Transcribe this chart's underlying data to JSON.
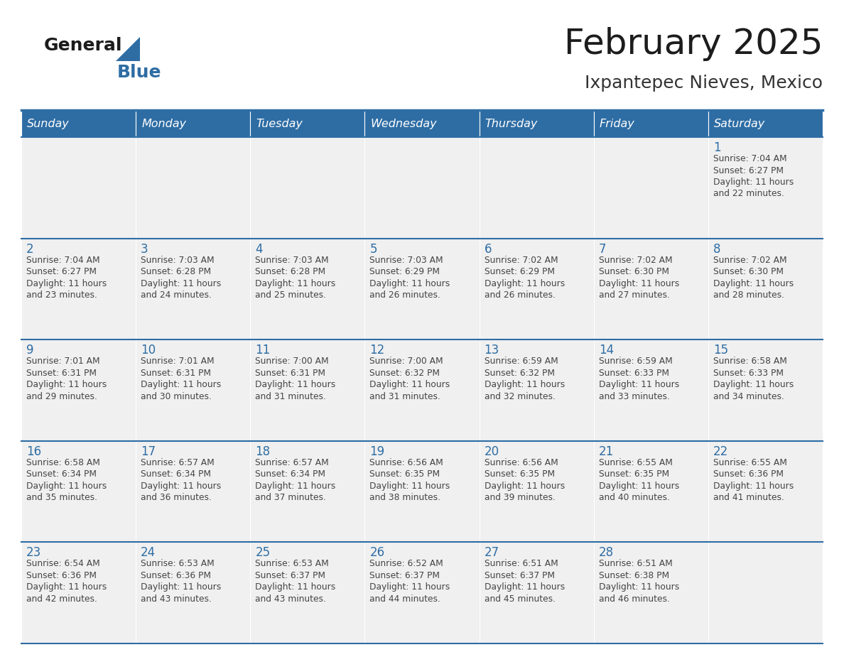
{
  "title": "February 2025",
  "subtitle": "Ixpantepec Nieves, Mexico",
  "header_color": "#2E6DA4",
  "header_text_color": "#FFFFFF",
  "cell_bg_color": "#F0F0F0",
  "day_number_color": "#2E6DA4",
  "text_color": "#444444",
  "days_of_week": [
    "Sunday",
    "Monday",
    "Tuesday",
    "Wednesday",
    "Thursday",
    "Friday",
    "Saturday"
  ],
  "calendar_data": [
    [
      null,
      null,
      null,
      null,
      null,
      null,
      {
        "day": "1",
        "sunrise": "7:04 AM",
        "sunset": "6:27 PM",
        "daylight": "11 hours",
        "daylight2": "and 22 minutes."
      }
    ],
    [
      {
        "day": "2",
        "sunrise": "7:04 AM",
        "sunset": "6:27 PM",
        "daylight": "11 hours",
        "daylight2": "and 23 minutes."
      },
      {
        "day": "3",
        "sunrise": "7:03 AM",
        "sunset": "6:28 PM",
        "daylight": "11 hours",
        "daylight2": "and 24 minutes."
      },
      {
        "day": "4",
        "sunrise": "7:03 AM",
        "sunset": "6:28 PM",
        "daylight": "11 hours",
        "daylight2": "and 25 minutes."
      },
      {
        "day": "5",
        "sunrise": "7:03 AM",
        "sunset": "6:29 PM",
        "daylight": "11 hours",
        "daylight2": "and 26 minutes."
      },
      {
        "day": "6",
        "sunrise": "7:02 AM",
        "sunset": "6:29 PM",
        "daylight": "11 hours",
        "daylight2": "and 26 minutes."
      },
      {
        "day": "7",
        "sunrise": "7:02 AM",
        "sunset": "6:30 PM",
        "daylight": "11 hours",
        "daylight2": "and 27 minutes."
      },
      {
        "day": "8",
        "sunrise": "7:02 AM",
        "sunset": "6:30 PM",
        "daylight": "11 hours",
        "daylight2": "and 28 minutes."
      }
    ],
    [
      {
        "day": "9",
        "sunrise": "7:01 AM",
        "sunset": "6:31 PM",
        "daylight": "11 hours",
        "daylight2": "and 29 minutes."
      },
      {
        "day": "10",
        "sunrise": "7:01 AM",
        "sunset": "6:31 PM",
        "daylight": "11 hours",
        "daylight2": "and 30 minutes."
      },
      {
        "day": "11",
        "sunrise": "7:00 AM",
        "sunset": "6:31 PM",
        "daylight": "11 hours",
        "daylight2": "and 31 minutes."
      },
      {
        "day": "12",
        "sunrise": "7:00 AM",
        "sunset": "6:32 PM",
        "daylight": "11 hours",
        "daylight2": "and 31 minutes."
      },
      {
        "day": "13",
        "sunrise": "6:59 AM",
        "sunset": "6:32 PM",
        "daylight": "11 hours",
        "daylight2": "and 32 minutes."
      },
      {
        "day": "14",
        "sunrise": "6:59 AM",
        "sunset": "6:33 PM",
        "daylight": "11 hours",
        "daylight2": "and 33 minutes."
      },
      {
        "day": "15",
        "sunrise": "6:58 AM",
        "sunset": "6:33 PM",
        "daylight": "11 hours",
        "daylight2": "and 34 minutes."
      }
    ],
    [
      {
        "day": "16",
        "sunrise": "6:58 AM",
        "sunset": "6:34 PM",
        "daylight": "11 hours",
        "daylight2": "and 35 minutes."
      },
      {
        "day": "17",
        "sunrise": "6:57 AM",
        "sunset": "6:34 PM",
        "daylight": "11 hours",
        "daylight2": "and 36 minutes."
      },
      {
        "day": "18",
        "sunrise": "6:57 AM",
        "sunset": "6:34 PM",
        "daylight": "11 hours",
        "daylight2": "and 37 minutes."
      },
      {
        "day": "19",
        "sunrise": "6:56 AM",
        "sunset": "6:35 PM",
        "daylight": "11 hours",
        "daylight2": "and 38 minutes."
      },
      {
        "day": "20",
        "sunrise": "6:56 AM",
        "sunset": "6:35 PM",
        "daylight": "11 hours",
        "daylight2": "and 39 minutes."
      },
      {
        "day": "21",
        "sunrise": "6:55 AM",
        "sunset": "6:35 PM",
        "daylight": "11 hours",
        "daylight2": "and 40 minutes."
      },
      {
        "day": "22",
        "sunrise": "6:55 AM",
        "sunset": "6:36 PM",
        "daylight": "11 hours",
        "daylight2": "and 41 minutes."
      }
    ],
    [
      {
        "day": "23",
        "sunrise": "6:54 AM",
        "sunset": "6:36 PM",
        "daylight": "11 hours",
        "daylight2": "and 42 minutes."
      },
      {
        "day": "24",
        "sunrise": "6:53 AM",
        "sunset": "6:36 PM",
        "daylight": "11 hours",
        "daylight2": "and 43 minutes."
      },
      {
        "day": "25",
        "sunrise": "6:53 AM",
        "sunset": "6:37 PM",
        "daylight": "11 hours",
        "daylight2": "and 43 minutes."
      },
      {
        "day": "26",
        "sunrise": "6:52 AM",
        "sunset": "6:37 PM",
        "daylight": "11 hours",
        "daylight2": "and 44 minutes."
      },
      {
        "day": "27",
        "sunrise": "6:51 AM",
        "sunset": "6:37 PM",
        "daylight": "11 hours",
        "daylight2": "and 45 minutes."
      },
      {
        "day": "28",
        "sunrise": "6:51 AM",
        "sunset": "6:38 PM",
        "daylight": "11 hours",
        "daylight2": "and 46 minutes."
      },
      null
    ]
  ],
  "fig_width": 11.88,
  "fig_height": 9.18,
  "dpi": 100
}
